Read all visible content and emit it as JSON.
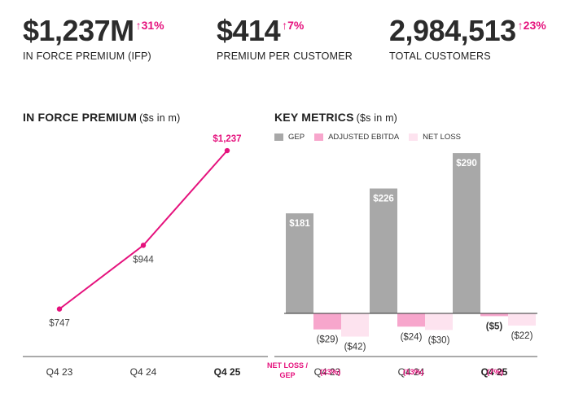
{
  "kpis": [
    {
      "value": "$1,237M",
      "change": "↑31%",
      "label": "IN FORCE PREMIUM (IFP)"
    },
    {
      "value": "$414",
      "change": "↑7%",
      "label": "PREMIUM PER CUSTOMER"
    },
    {
      "value": "2,984,513",
      "change": "↑23%",
      "label": "TOTAL CUSTOMERS"
    }
  ],
  "left_chart": {
    "title": "IN FORCE PREMIUM",
    "unit": "($s in m)"
  },
  "right_chart": {
    "title": "KEY METRICS",
    "unit": "($s in m)"
  },
  "legend": [
    "GEP",
    "ADJUSTED EBITDA",
    "NET LOSS"
  ],
  "colors": {
    "accent": "#e5127d",
    "gep": "#a8a8a8",
    "ebitda": "#f7a6cc",
    "net_loss": "#fde3ef",
    "axis": "#555555"
  },
  "footer": {
    "label": "NET LOSS / GEP",
    "values": [
      "(23%)",
      "(13%)",
      "(7%)"
    ]
  },
  "chart_data": [
    {
      "type": "line",
      "title": "IN FORCE PREMIUM ($s in m)",
      "categories": [
        "Q4 23",
        "Q4 24",
        "Q4 25"
      ],
      "values": [
        747,
        944,
        1237
      ],
      "value_labels": [
        "$747",
        "$944",
        "$1,237"
      ],
      "ylim": [
        600,
        1300
      ],
      "grid": false
    },
    {
      "type": "bar",
      "title": "KEY METRICS ($s in m)",
      "categories": [
        "Q4 23",
        "Q4 24",
        "Q4 25"
      ],
      "series": [
        {
          "name": "GEP",
          "values": [
            181,
            226,
            290
          ],
          "labels": [
            "$181",
            "$226",
            "$290"
          ]
        },
        {
          "name": "ADJUSTED EBITDA",
          "values": [
            -29,
            -24,
            -5
          ],
          "labels": [
            "($29)",
            "($24)",
            "($5)"
          ]
        },
        {
          "name": "NET LOSS",
          "values": [
            -42,
            -30,
            -22
          ],
          "labels": [
            "($42)",
            "($30)",
            "($22)"
          ]
        }
      ],
      "ylim": [
        -60,
        300
      ],
      "legend_position": "top-left",
      "grid": false
    }
  ]
}
